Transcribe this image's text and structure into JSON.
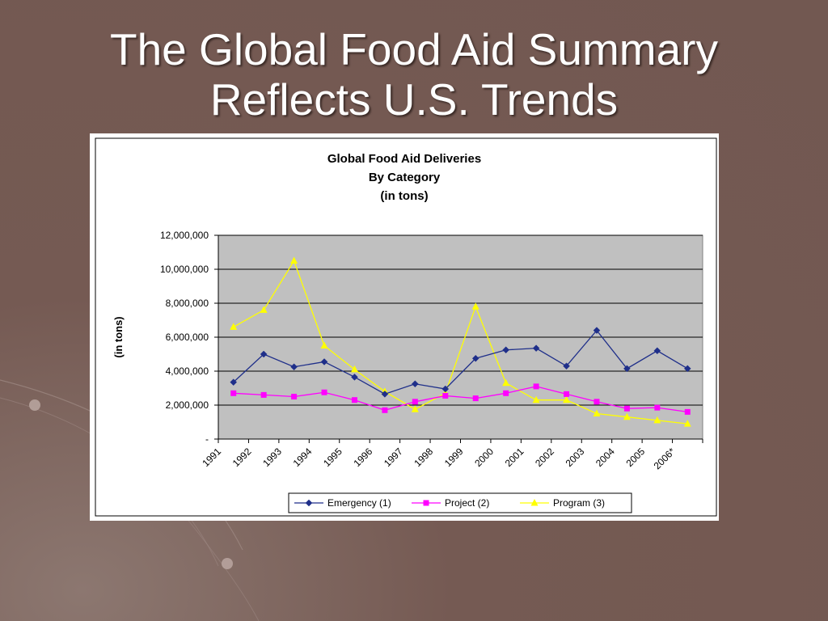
{
  "slide": {
    "title_line1": "The Global Food Aid Summary",
    "title_line2": "Reflects U.S. Trends"
  },
  "colors": {
    "background": "#755a53",
    "plot_area": "#c0c0c0",
    "emergency": "#1f2f8a",
    "project": "#ff00ff",
    "program": "#ffff00"
  },
  "chart_data": {
    "type": "line",
    "title": [
      "Global Food Aid Deliveries",
      "By Category",
      "(in tons)"
    ],
    "xlabel": "",
    "ylabel": "(in tons)",
    "ylim": [
      0,
      12000000
    ],
    "yticks": [
      0,
      2000000,
      4000000,
      6000000,
      8000000,
      10000000,
      12000000
    ],
    "ytick_labels": [
      "-",
      "2,000,000",
      "4,000,000",
      "6,000,000",
      "8,000,000",
      "10,000,000",
      "12,000,000"
    ],
    "grid": true,
    "legend_position": "bottom",
    "categories": [
      "1991",
      "1992",
      "1993",
      "1994",
      "1995",
      "1996",
      "1997",
      "1998",
      "1999",
      "2000",
      "2001",
      "2002",
      "2003",
      "2004",
      "2005",
      "2006*"
    ],
    "series": [
      {
        "name": "Emergency (1)",
        "marker": "diamond",
        "values": [
          3350000,
          5000000,
          4250000,
          4550000,
          3650000,
          2650000,
          3250000,
          2950000,
          4750000,
          5250000,
          5350000,
          4300000,
          6400000,
          4150000,
          5200000,
          4150000
        ]
      },
      {
        "name": "Project (2)",
        "marker": "square",
        "values": [
          2700000,
          2600000,
          2500000,
          2750000,
          2300000,
          1700000,
          2200000,
          2550000,
          2400000,
          2700000,
          3100000,
          2650000,
          2200000,
          1800000,
          1850000,
          1600000
        ]
      },
      {
        "name": "Program (3)",
        "marker": "triangle",
        "values": [
          6600000,
          7600000,
          10500000,
          5500000,
          4100000,
          2800000,
          1750000,
          2700000,
          7800000,
          3300000,
          2300000,
          2300000,
          1500000,
          1300000,
          1100000,
          900000
        ]
      }
    ]
  }
}
